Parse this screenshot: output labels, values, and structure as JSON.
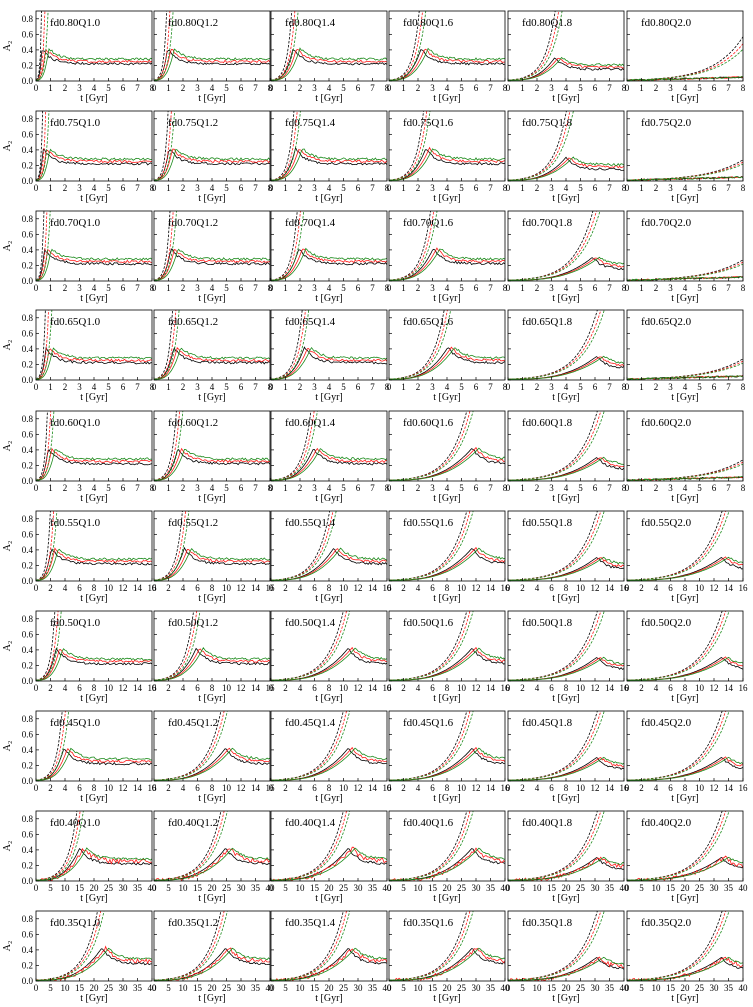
{
  "chart_data": {
    "type": "line",
    "layout": {
      "rows": 10,
      "cols": 6
    },
    "ylabel": "A₂",
    "xlabel": "t [Gyr]",
    "ylim": [
      0,
      0.9
    ],
    "yticks": [
      "0.0",
      "0.2",
      "0.4",
      "0.6",
      "0.8"
    ],
    "ytick_values": [
      0,
      0.2,
      0.4,
      0.6,
      0.8
    ],
    "colors": {
      "black": "#000000",
      "red": "#ff1a1a",
      "green": "#1a8a1a"
    },
    "panels": [
      {
        "row": 0,
        "cols": [
          "fd0.80Q1.0",
          "fd0.80Q1.2",
          "fd0.80Q1.4",
          "fd0.80Q1.6",
          "fd0.80Q1.8",
          "fd0.80Q2.0"
        ]
      },
      {
        "row": 1,
        "cols": [
          "fd0.75Q1.0",
          "fd0.75Q1.2",
          "fd0.75Q1.4",
          "fd0.75Q1.6",
          "fd0.75Q1.8",
          "fd0.75Q2.0"
        ]
      },
      {
        "row": 2,
        "cols": [
          "fd0.70Q1.0",
          "fd0.70Q1.2",
          "fd0.70Q1.4",
          "fd0.70Q1.6",
          "fd0.70Q1.8",
          "fd0.70Q2.0"
        ]
      },
      {
        "row": 3,
        "cols": [
          "fd0.65Q1.0",
          "fd0.65Q1.2",
          "fd0.65Q1.4",
          "fd0.65Q1.6",
          "fd0.65Q1.8",
          "fd0.65Q2.0"
        ]
      },
      {
        "row": 4,
        "cols": [
          "fd0.60Q1.0",
          "fd0.60Q1.2",
          "fd0.60Q1.4",
          "fd0.60Q1.6",
          "fd0.60Q1.8",
          "fd0.60Q2.0"
        ]
      },
      {
        "row": 5,
        "cols": [
          "fd0.55Q1.0",
          "fd0.55Q1.2",
          "fd0.55Q1.4",
          "fd0.55Q1.6",
          "fd0.55Q1.8",
          "fd0.55Q2.0"
        ]
      },
      {
        "row": 6,
        "cols": [
          "fd0.50Q1.0",
          "fd0.50Q1.2",
          "fd0.50Q1.4",
          "fd0.50Q1.6",
          "fd0.50Q1.8",
          "fd0.50Q2.0"
        ]
      },
      {
        "row": 7,
        "cols": [
          "fd0.45Q1.0",
          "fd0.45Q1.2",
          "fd0.45Q1.4",
          "fd0.45Q1.6",
          "fd0.45Q1.8",
          "fd0.45Q2.0"
        ]
      },
      {
        "row": 8,
        "cols": [
          "fd0.40Q1.0",
          "fd0.40Q1.2",
          "fd0.40Q1.4",
          "fd0.40Q1.6",
          "fd0.40Q1.8",
          "fd0.40Q2.0"
        ]
      },
      {
        "row": 9,
        "cols": [
          "fd0.35Q1.0",
          "fd0.35Q1.2",
          "fd0.35Q1.4",
          "fd0.35Q1.6",
          "fd0.35Q1.8",
          "fd0.35Q2.0"
        ]
      }
    ],
    "x_axes": [
      {
        "rows": [
          0,
          1,
          2,
          3,
          4
        ],
        "xlim": [
          0,
          8
        ],
        "ticks": [
          0,
          1,
          2,
          3,
          4,
          5,
          6,
          7,
          8
        ]
      },
      {
        "rows": [
          5,
          6,
          7
        ],
        "xlim": [
          0,
          16
        ],
        "ticks": [
          0,
          2,
          4,
          6,
          8,
          10,
          12,
          14,
          16
        ]
      },
      {
        "rows": [
          8,
          9
        ],
        "xlim": [
          0,
          40
        ],
        "ticks": [
          0,
          5,
          10,
          15,
          20,
          25,
          30,
          35,
          40
        ]
      }
    ],
    "series_note": "Each panel shows three solid simulation curves (black, red, green) and dashed exponential-growth fits of the same colours."
  }
}
